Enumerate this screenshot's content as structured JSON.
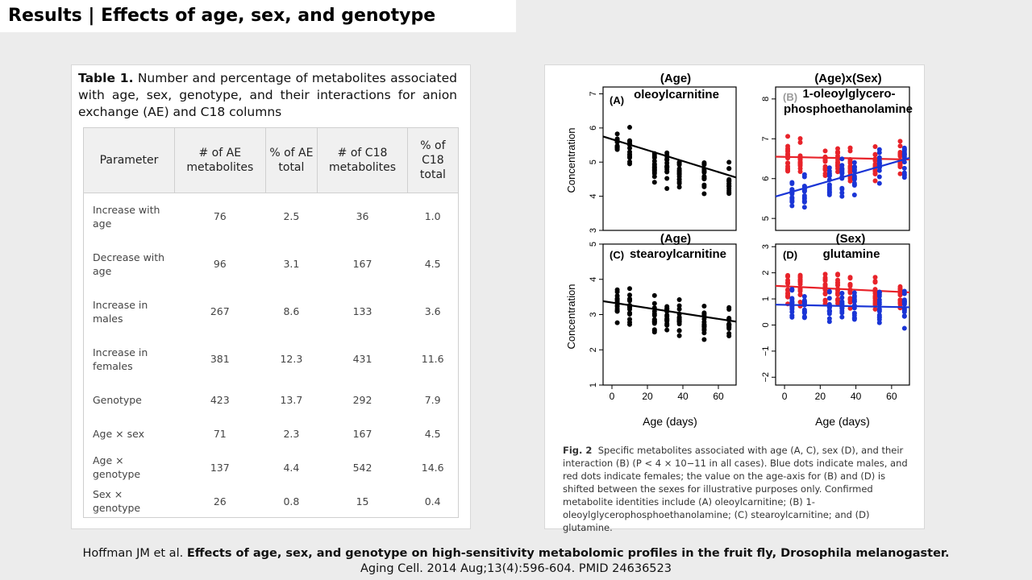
{
  "slide_title": "Results | Effects of age, sex, and genotype",
  "table_caption": {
    "label": "Table 1.",
    "text": " Number and percentage of metabolites associated with age, sex, genotype, and their interactions for anion exchange (AE) and C18 columns"
  },
  "table": {
    "headers": [
      "Parameter",
      "# of AE metabolites",
      "% of AE total",
      "# of C18 metabolites",
      "% of C18 total"
    ],
    "rows": [
      [
        "Increase with age",
        "76",
        "2.5",
        "36",
        "1.0"
      ],
      [
        "Decrease with age",
        "96",
        "3.1",
        "167",
        "4.5"
      ],
      [
        "Increase in males",
        "267",
        "8.6",
        "133",
        "3.6"
      ],
      [
        "Increase in females",
        "381",
        "12.3",
        "431",
        "11.6"
      ],
      [
        "Genotype",
        "423",
        "13.7",
        "292",
        "7.9"
      ],
      [
        "Age × sex",
        "71",
        "2.3",
        "167",
        "4.5"
      ],
      [
        "Age × genotype",
        "137",
        "4.4",
        "542",
        "14.6"
      ],
      [
        "Sex × genotype",
        "26",
        "0.8",
        "15",
        "0.4"
      ]
    ]
  },
  "figure": {
    "y_label": "Concentration",
    "x_label": "Age (days)",
    "panels": [
      {
        "header": "(Age)",
        "name": "oleoylcarnitine",
        "tag": "(A)"
      },
      {
        "header": "(Age)x(Sex)",
        "name": "1-oleoylglycero-",
        "name2": "phosphoethanolamine",
        "tag": "(B)"
      },
      {
        "header": "(Age)",
        "name": "stearoylcarnitine",
        "tag": "(C)"
      },
      {
        "header": "(Sex)",
        "name": "glutamine",
        "tag": "(D)"
      }
    ],
    "caption_label": "Fig. 2",
    "caption_text": "Specific metabolites associated with age (A, C), sex (D), and their interaction (B) (P < 4 × 10−11 in all cases). Blue dots indicate males, and red dots indicate females; the value on the age-axis for (B) and (D) is shifted between the sexes for illustrative purposes only. Confirmed metabolite identities include (A) oleoylcarnitine; (B) 1-oleoylglycerophosphoethanolamine; (C) stearoylcarnitine; and (D) glutamine."
  },
  "chart_data": [
    {
      "type": "scatter",
      "panel": "A",
      "title": "oleoylcarnitine",
      "xlabel": "",
      "ylabel": "Concentration",
      "xlim": [
        -5,
        70
      ],
      "ylim": [
        3,
        7.2
      ],
      "x_ticks": [],
      "y_ticks": [
        3,
        4,
        5,
        6,
        7
      ],
      "x_groups": [
        3,
        10,
        24,
        31,
        38,
        52,
        66
      ],
      "series": [
        {
          "group_means": [
            5.6,
            5.4,
            5.0,
            4.8,
            4.8,
            4.6,
            4.5
          ],
          "color": "#000000",
          "trend": [
            5.75,
            4.55
          ]
        }
      ]
    },
    {
      "type": "scatter",
      "panel": "B",
      "title": "1-oleoylglycerophosphoethanolamine",
      "xlabel": "",
      "ylabel": "",
      "xlim": [
        -5,
        70
      ],
      "ylim": [
        4.7,
        8.3
      ],
      "x_ticks": [],
      "y_ticks": [
        5,
        6,
        7,
        8
      ],
      "x_groups": [
        3,
        10,
        24,
        31,
        38,
        52,
        66
      ],
      "series": [
        {
          "sex": "female",
          "group_means": [
            6.6,
            6.5,
            6.5,
            6.4,
            6.4,
            6.4,
            6.5
          ],
          "color": "#e8232a",
          "trend": [
            6.55,
            6.48
          ]
        },
        {
          "sex": "male",
          "group_means": [
            5.6,
            5.7,
            5.9,
            6.0,
            6.1,
            6.3,
            6.5
          ],
          "color": "#1a35d6",
          "trend": [
            5.55,
            6.52
          ]
        }
      ]
    },
    {
      "type": "scatter",
      "panel": "C",
      "title": "stearoylcarnitine",
      "xlabel": "Age (days)",
      "ylabel": "Concentration",
      "xlim": [
        -5,
        70
      ],
      "ylim": [
        1,
        5
      ],
      "x_ticks": [
        0,
        20,
        40,
        60
      ],
      "y_ticks": [
        1,
        2,
        3,
        4,
        5
      ],
      "x_groups": [
        3,
        10,
        24,
        31,
        38,
        52,
        66
      ],
      "series": [
        {
          "group_means": [
            3.3,
            3.2,
            3.0,
            3.0,
            2.9,
            2.8,
            2.8
          ],
          "color": "#000000",
          "trend": [
            3.38,
            2.8
          ]
        }
      ]
    },
    {
      "type": "scatter",
      "panel": "D",
      "title": "glutamine",
      "xlabel": "Age (days)",
      "ylabel": "",
      "xlim": [
        -5,
        70
      ],
      "ylim": [
        -2.3,
        3.1
      ],
      "x_ticks": [
        0,
        20,
        40,
        60
      ],
      "y_ticks": [
        -2,
        -1,
        0,
        1,
        2,
        3
      ],
      "x_groups": [
        3,
        10,
        24,
        31,
        38,
        52,
        66
      ],
      "series": [
        {
          "sex": "female",
          "group_means": [
            1.5,
            1.4,
            1.4,
            1.3,
            1.3,
            1.2,
            1.2
          ],
          "color": "#e8232a",
          "trend": [
            1.5,
            1.25
          ]
        },
        {
          "sex": "male",
          "group_means": [
            0.8,
            0.8,
            0.7,
            0.7,
            0.7,
            0.7,
            0.7
          ],
          "color": "#1a35d6",
          "trend": [
            0.78,
            0.68
          ]
        }
      ]
    }
  ],
  "citation": {
    "authors": "Hoffman JM et al. ",
    "title": "Effects of age, sex, and genotype on high-sensitivity metabolomic profiles in the fruit fly, Drosophila melanogaster.",
    "journal": "Aging Cell. 2014 Aug;13(4):596-604. PMID 24636523"
  }
}
